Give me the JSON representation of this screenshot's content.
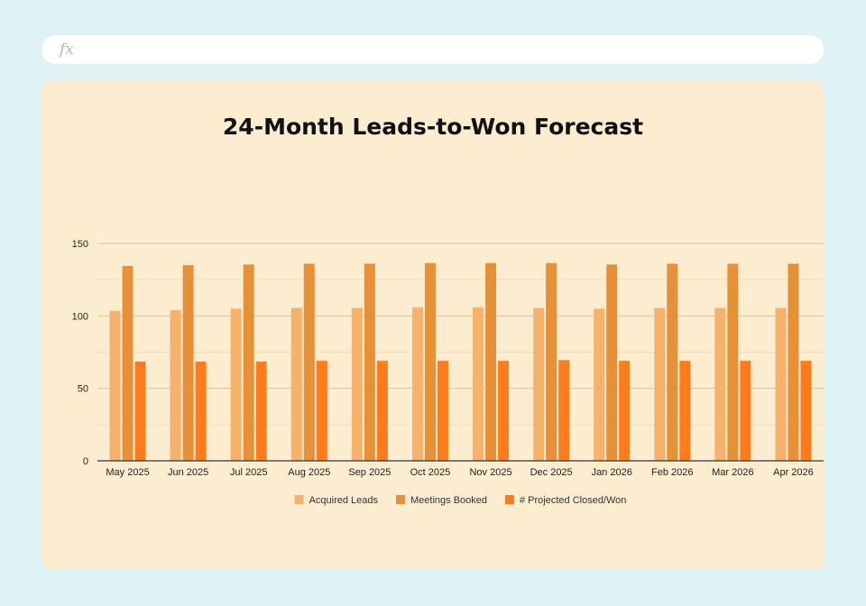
{
  "formula_bar": {
    "icon": "fx",
    "value": ""
  },
  "chart_data": {
    "type": "bar",
    "title": "24-Month Leads-to-Won Forecast",
    "xlabel": "",
    "ylabel": "",
    "ylim": [
      0,
      150
    ],
    "yticks": [
      0,
      50,
      100,
      150
    ],
    "grid": true,
    "legend_position": "bottom",
    "categories": [
      "May 2025",
      "Jun 2025",
      "Jul 2025",
      "Aug 2025",
      "Sep 2025",
      "Oct 2025",
      "Nov 2025",
      "Dec 2025",
      "Jan 2026",
      "Feb 2026",
      "Mar 2026",
      "Apr 2026"
    ],
    "series": [
      {
        "name": "Acquired Leads",
        "color": "#f6b26b",
        "values": [
          103.5,
          104,
          105,
          105.5,
          105.5,
          106,
          106,
          105.5,
          105,
          105.5,
          105.5,
          105.5
        ]
      },
      {
        "name": "Meetings Booked",
        "color": "#e69138",
        "values": [
          134.5,
          135,
          135.5,
          136,
          136,
          136.5,
          136.5,
          136.5,
          135.5,
          136,
          136,
          136
        ]
      },
      {
        "name": "# Projected Closed/Won",
        "color": "#ff7b1c",
        "values": [
          68.5,
          68.5,
          68.5,
          69,
          69,
          69,
          69,
          69.5,
          69,
          69,
          69,
          69
        ]
      }
    ]
  }
}
